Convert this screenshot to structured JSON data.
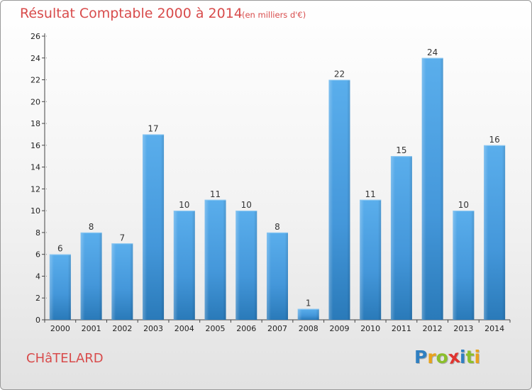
{
  "header": {
    "title": "Résultat Comptable 2000 à 2014",
    "subtitle": "(en milliers d'€)"
  },
  "footer": {
    "commune": "CHâTELARD",
    "logo_text": "Proxiti",
    "logo_letters": [
      "P",
      "r",
      "o",
      "x",
      "i",
      "t",
      "i"
    ],
    "logo_colors": [
      "#2f7fc1",
      "#e8a31c",
      "#8bbf2c",
      "#e0342f",
      "#2f7fc1",
      "#8bbf2c",
      "#e8a31c"
    ]
  },
  "colors": {
    "bar": "#55a8e8",
    "bar_dark": "#2a7fc2",
    "axis": "#555555",
    "grid": "#000000"
  },
  "chart_data": {
    "type": "bar",
    "title": "Résultat Comptable 2000 à 2014",
    "subtitle": "(en milliers d'€)",
    "categories": [
      "2000",
      "2001",
      "2002",
      "2003",
      "2004",
      "2005",
      "2006",
      "2007",
      "2008",
      "2009",
      "2010",
      "2011",
      "2012",
      "2013",
      "2014"
    ],
    "values": [
      6,
      8,
      7,
      17,
      10,
      11,
      10,
      8,
      1,
      22,
      11,
      15,
      24,
      10,
      16
    ],
    "ylim": [
      0,
      26
    ],
    "yticks": [
      0,
      2,
      4,
      6,
      8,
      10,
      12,
      14,
      16,
      18,
      20,
      22,
      24,
      26
    ],
    "xlabel": "",
    "ylabel": "",
    "grid": false,
    "data_labels": true
  }
}
